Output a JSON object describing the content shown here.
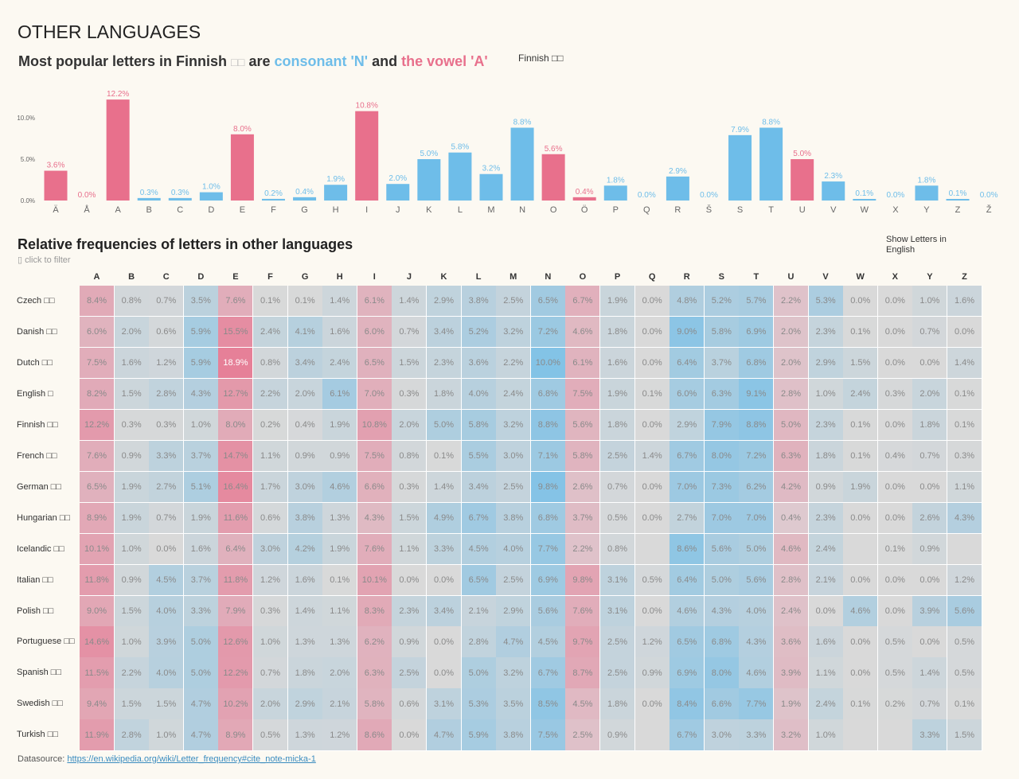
{
  "header": {
    "title": "OTHER LANGUAGES",
    "subtitle_prefix": "Most popular letters in Finnish",
    "subtitle_flag": "□□",
    "subtitle_are": "are",
    "subtitle_consonant": "consonant 'N'",
    "subtitle_and": "and",
    "subtitle_vowel": "the vowel 'A'",
    "legend_label": "Finnish □□"
  },
  "colors": {
    "vowel": "#e8708c",
    "consonant": "#6ebde9",
    "empty": "#d9d9d9"
  },
  "heatmap_header": {
    "title": "Relative frequencies of letters in other languages",
    "hint": "▯ click to filter",
    "show_english": "Show Letters in English"
  },
  "footer": {
    "label": "Datasource:",
    "link": "https://en.wikipedia.org/wiki/Letter_frequency#cite_note-micka-1"
  },
  "chart_data": [
    {
      "type": "bar",
      "title": "Most popular letters in Finnish",
      "ylabel": "",
      "xlabel": "",
      "ylim": [
        0,
        12.5
      ],
      "yticks": [
        "0.0%",
        "5.0%",
        "10.0%"
      ],
      "ytick_values": [
        0,
        5,
        10
      ],
      "categories": [
        "Ä",
        "Å",
        "A",
        "B",
        "C",
        "D",
        "E",
        "F",
        "G",
        "H",
        "I",
        "J",
        "K",
        "L",
        "M",
        "N",
        "O",
        "Ö",
        "P",
        "Q",
        "R",
        "Š",
        "S",
        "T",
        "U",
        "V",
        "W",
        "X",
        "Y",
        "Z",
        "Ž"
      ],
      "values": [
        3.6,
        0.0,
        12.2,
        0.3,
        0.3,
        1.0,
        8.0,
        0.2,
        0.4,
        1.9,
        10.8,
        2.0,
        5.0,
        5.8,
        3.2,
        8.8,
        5.6,
        0.4,
        1.8,
        0.0,
        2.9,
        0.0,
        7.9,
        8.8,
        5.0,
        2.3,
        0.1,
        0.0,
        1.8,
        0.1,
        0.0
      ],
      "vowels": [
        "Ä",
        "Å",
        "A",
        "E",
        "I",
        "O",
        "Ö",
        "U"
      ],
      "legend": "Finnish □□"
    },
    {
      "type": "heatmap",
      "title": "Relative frequencies of letters in other languages",
      "columns": [
        "A",
        "B",
        "C",
        "D",
        "E",
        "F",
        "G",
        "H",
        "I",
        "J",
        "K",
        "L",
        "M",
        "N",
        "O",
        "P",
        "Q",
        "R",
        "S",
        "T",
        "U",
        "V",
        "W",
        "X",
        "Y",
        "Z"
      ],
      "vowels": [
        "A",
        "E",
        "I",
        "O",
        "U"
      ],
      "rows": [
        {
          "label": "Czech □□",
          "values": [
            8.4,
            0.8,
            0.7,
            3.5,
            7.6,
            0.1,
            0.1,
            1.4,
            6.1,
            1.4,
            2.9,
            3.8,
            2.5,
            6.5,
            6.7,
            1.9,
            0.0,
            4.8,
            5.2,
            5.7,
            2.2,
            5.3,
            0.0,
            0.0,
            1.0,
            1.6
          ]
        },
        {
          "label": "Danish □□",
          "values": [
            6.0,
            2.0,
            0.6,
            5.9,
            15.5,
            2.4,
            4.1,
            1.6,
            6.0,
            0.7,
            3.4,
            5.2,
            3.2,
            7.2,
            4.6,
            1.8,
            0.0,
            9.0,
            5.8,
            6.9,
            2.0,
            2.3,
            0.1,
            0.0,
            0.7,
            0.0
          ]
        },
        {
          "label": "Dutch □□",
          "values": [
            7.5,
            1.6,
            1.2,
            5.9,
            18.9,
            0.8,
            3.4,
            2.4,
            6.5,
            1.5,
            2.3,
            3.6,
            2.2,
            10.0,
            6.1,
            1.6,
            0.0,
            6.4,
            3.7,
            6.8,
            2.0,
            2.9,
            1.5,
            0.0,
            0.0,
            1.4
          ]
        },
        {
          "label": "English □",
          "values": [
            8.2,
            1.5,
            2.8,
            4.3,
            12.7,
            2.2,
            2.0,
            6.1,
            7.0,
            0.3,
            1.8,
            4.0,
            2.4,
            6.8,
            7.5,
            1.9,
            0.1,
            6.0,
            6.3,
            9.1,
            2.8,
            1.0,
            2.4,
            0.3,
            2.0,
            0.1
          ]
        },
        {
          "label": "Finnish □□",
          "values": [
            12.2,
            0.3,
            0.3,
            1.0,
            8.0,
            0.2,
            0.4,
            1.9,
            10.8,
            2.0,
            5.0,
            5.8,
            3.2,
            8.8,
            5.6,
            1.8,
            0.0,
            2.9,
            7.9,
            8.8,
            5.0,
            2.3,
            0.1,
            0.0,
            1.8,
            0.1
          ]
        },
        {
          "label": "French □□",
          "values": [
            7.6,
            0.9,
            3.3,
            3.7,
            14.7,
            1.1,
            0.9,
            0.9,
            7.5,
            0.8,
            0.1,
            5.5,
            3.0,
            7.1,
            5.8,
            2.5,
            1.4,
            6.7,
            8.0,
            7.2,
            6.3,
            1.8,
            0.1,
            0.4,
            0.7,
            0.3
          ]
        },
        {
          "label": "German □□",
          "values": [
            6.5,
            1.9,
            2.7,
            5.1,
            16.4,
            1.7,
            3.0,
            4.6,
            6.6,
            0.3,
            1.4,
            3.4,
            2.5,
            9.8,
            2.6,
            0.7,
            0.0,
            7.0,
            7.3,
            6.2,
            4.2,
            0.9,
            1.9,
            0.0,
            0.0,
            1.1
          ]
        },
        {
          "label": "Hungarian □□",
          "values": [
            8.9,
            1.9,
            0.7,
            1.9,
            11.6,
            0.6,
            3.8,
            1.3,
            4.3,
            1.5,
            4.9,
            6.7,
            3.8,
            6.8,
            3.7,
            0.5,
            0.0,
            2.7,
            7.0,
            7.0,
            0.4,
            2.3,
            0.0,
            0.0,
            2.6,
            4.3
          ]
        },
        {
          "label": "Icelandic □□",
          "values": [
            10.1,
            1.0,
            0.0,
            1.6,
            6.4,
            3.0,
            4.2,
            1.9,
            7.6,
            1.1,
            3.3,
            4.5,
            4.0,
            7.7,
            2.2,
            0.8,
            null,
            8.6,
            5.6,
            5.0,
            4.6,
            2.4,
            null,
            0.1,
            0.9,
            null
          ]
        },
        {
          "label": "Italian □□",
          "values": [
            11.8,
            0.9,
            4.5,
            3.7,
            11.8,
            1.2,
            1.6,
            0.1,
            10.1,
            0.0,
            0.0,
            6.5,
            2.5,
            6.9,
            9.8,
            3.1,
            0.5,
            6.4,
            5.0,
            5.6,
            2.8,
            2.1,
            0.0,
            0.0,
            0.0,
            1.2
          ]
        },
        {
          "label": "Polish □□",
          "values": [
            9.0,
            1.5,
            4.0,
            3.3,
            7.9,
            0.3,
            1.4,
            1.1,
            8.3,
            2.3,
            3.4,
            2.1,
            2.9,
            5.6,
            7.6,
            3.1,
            0.0,
            4.6,
            4.3,
            4.0,
            2.4,
            0.0,
            4.6,
            0.0,
            3.9,
            5.6
          ]
        },
        {
          "label": "Portuguese □□",
          "values": [
            14.6,
            1.0,
            3.9,
            5.0,
            12.6,
            1.0,
            1.3,
            1.3,
            6.2,
            0.9,
            0.0,
            2.8,
            4.7,
            4.5,
            9.7,
            2.5,
            1.2,
            6.5,
            6.8,
            4.3,
            3.6,
            1.6,
            0.0,
            0.5,
            0.0,
            0.5
          ]
        },
        {
          "label": "Spanish □□",
          "values": [
            11.5,
            2.2,
            4.0,
            5.0,
            12.2,
            0.7,
            1.8,
            2.0,
            6.3,
            2.5,
            0.0,
            5.0,
            3.2,
            6.7,
            8.7,
            2.5,
            0.9,
            6.9,
            8.0,
            4.6,
            3.9,
            1.1,
            0.0,
            0.5,
            1.4,
            0.5
          ]
        },
        {
          "label": "Swedish □□",
          "values": [
            9.4,
            1.5,
            1.5,
            4.7,
            10.2,
            2.0,
            2.9,
            2.1,
            5.8,
            0.6,
            3.1,
            5.3,
            3.5,
            8.5,
            4.5,
            1.8,
            0.0,
            8.4,
            6.6,
            7.7,
            1.9,
            2.4,
            0.1,
            0.2,
            0.7,
            0.1
          ]
        },
        {
          "label": "Turkish □□",
          "values": [
            11.9,
            2.8,
            1.0,
            4.7,
            8.9,
            0.5,
            1.3,
            1.2,
            8.6,
            0.0,
            4.7,
            5.9,
            3.8,
            7.5,
            2.5,
            0.9,
            null,
            6.7,
            3.0,
            3.3,
            3.2,
            1.0,
            null,
            null,
            3.3,
            1.5
          ]
        }
      ]
    }
  ]
}
